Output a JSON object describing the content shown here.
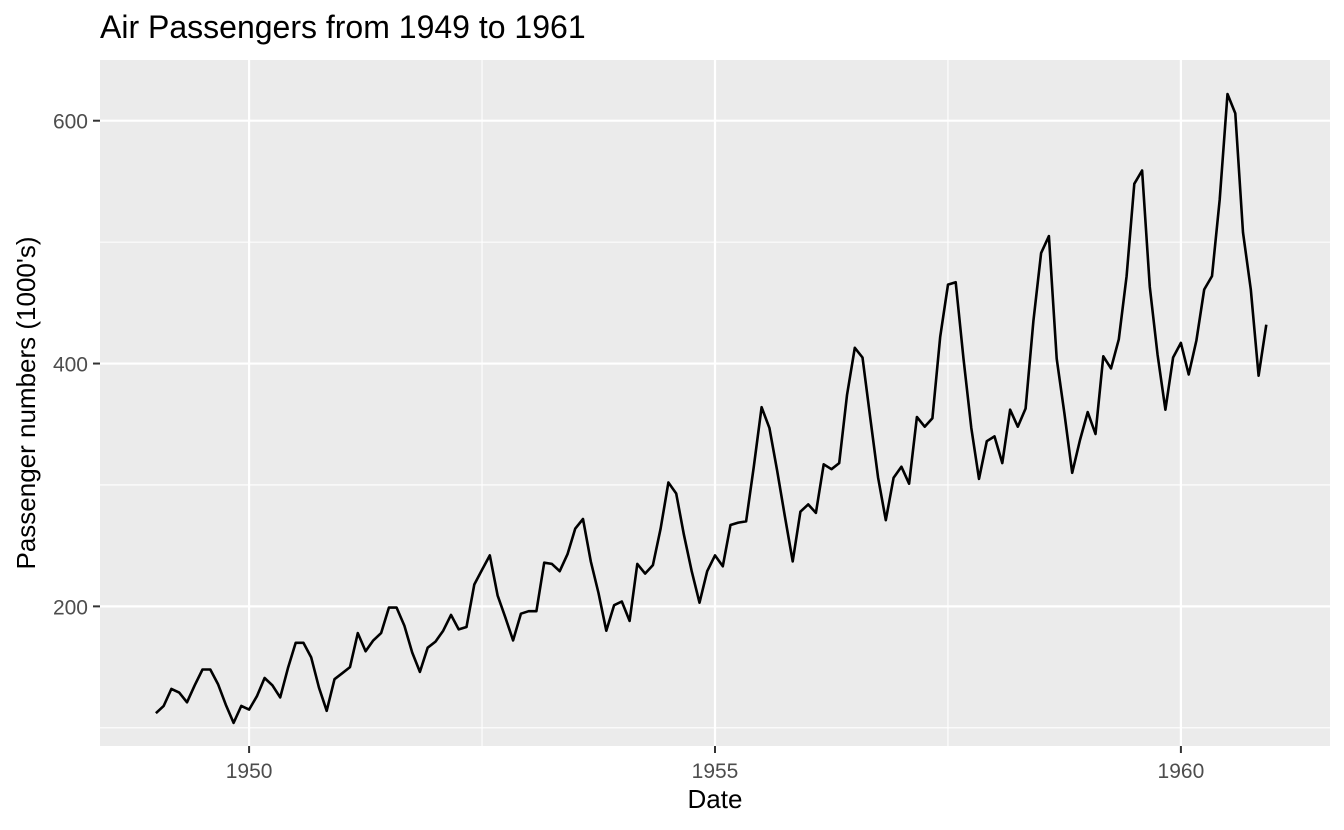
{
  "chart_data": {
    "type": "line",
    "title": "Air Passengers from 1949 to 1961",
    "xlabel": "Date",
    "ylabel": "Passenger numbers (1000's)",
    "xlim": [
      1948.4,
      1961.6
    ],
    "ylim": [
      85,
      650
    ],
    "x_ticks": [
      1950,
      1955,
      1960
    ],
    "x_tick_labels": [
      "1950",
      "1955",
      "1960"
    ],
    "y_ticks": [
      200,
      400,
      600
    ],
    "y_tick_labels": [
      "200",
      "400",
      "600"
    ],
    "x_start": 1949.0,
    "x_step_months": 1,
    "grid": true,
    "background": "#ebebeb",
    "line_color": "#000000",
    "series": [
      {
        "values": [
          112,
          118,
          132,
          129,
          121,
          135,
          148,
          148,
          136,
          119,
          104,
          118,
          115,
          126,
          141,
          135,
          125,
          149,
          170,
          170,
          158,
          133,
          114,
          140,
          145,
          150,
          178,
          163,
          172,
          178,
          199,
          199,
          184,
          162,
          146,
          166,
          171,
          180,
          193,
          181,
          183,
          218,
          230,
          242,
          209,
          191,
          172,
          194,
          196,
          196,
          236,
          235,
          229,
          243,
          264,
          272,
          237,
          211,
          180,
          201,
          204,
          188,
          235,
          227,
          234,
          264,
          302,
          293,
          259,
          229,
          203,
          229,
          242,
          233,
          267,
          269,
          270,
          315,
          364,
          347,
          312,
          274,
          237,
          278,
          284,
          277,
          317,
          313,
          318,
          374,
          413,
          405,
          355,
          306,
          271,
          306,
          315,
          301,
          356,
          348,
          355,
          422,
          465,
          467,
          404,
          347,
          305,
          336,
          340,
          318,
          362,
          348,
          363,
          435,
          491,
          505,
          404,
          359,
          310,
          337,
          360,
          342,
          406,
          396,
          420,
          472,
          548,
          559,
          463,
          407,
          362,
          405,
          417,
          391,
          419,
          461,
          472,
          535,
          622,
          606,
          508,
          461,
          390,
          432
        ]
      }
    ]
  }
}
